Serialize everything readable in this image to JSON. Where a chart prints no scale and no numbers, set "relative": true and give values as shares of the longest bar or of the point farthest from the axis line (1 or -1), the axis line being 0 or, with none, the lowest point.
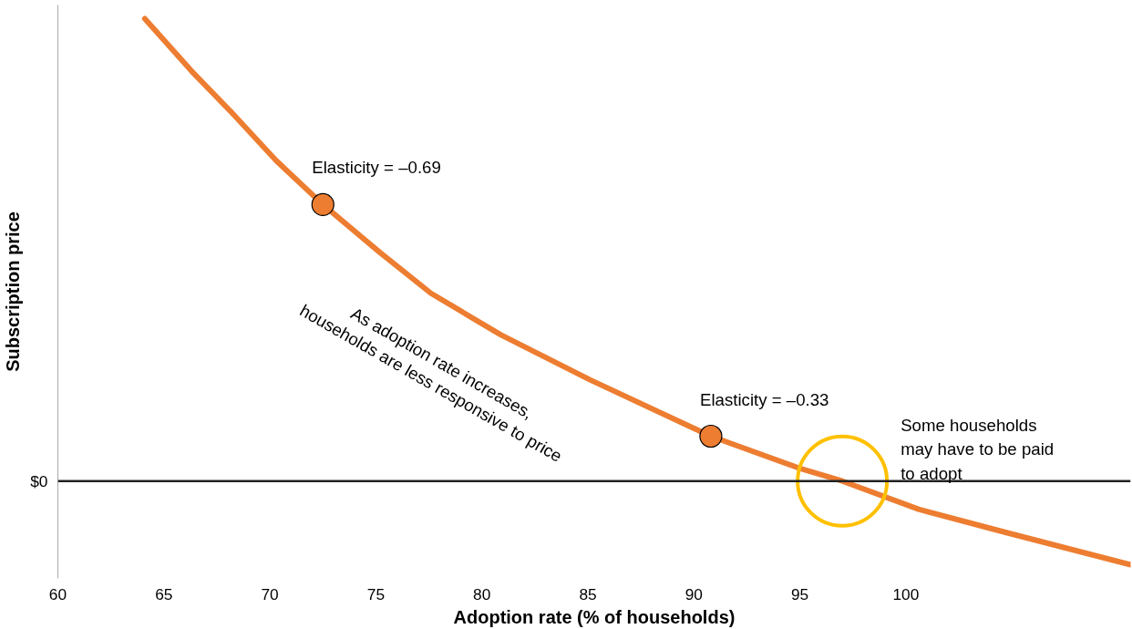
{
  "chart_data": {
    "type": "line",
    "relative": true,
    "xlabel": "Adoption rate (% of households)",
    "ylabel": "Subscription price",
    "xlim": [
      60,
      110.6
    ],
    "xticks": [
      60,
      65,
      70,
      75,
      80,
      85,
      90,
      95,
      100
    ],
    "grid": false,
    "series": [
      {
        "color": "#ed7d31",
        "x": [
          64.1,
          66.3,
          68.2,
          70.3,
          72.5,
          75.2,
          77.6,
          80.9,
          85.1,
          90.8,
          94.9,
          97.0,
          100.6,
          104.7,
          110.6
        ],
        "values": [
          1.0,
          0.887,
          0.797,
          0.693,
          0.598,
          0.494,
          0.406,
          0.316,
          0.219,
          0.097,
          0.029,
          0.0,
          -0.061,
          -0.111,
          -0.181
        ]
      },
      {
        "type": "scatter",
        "color": "#ed7d31",
        "marker": "circle",
        "x": [
          72.5,
          90.8
        ],
        "values": [
          0.598,
          0.097
        ]
      }
    ],
    "ref_lines": [
      {
        "axis": "y",
        "value": 0,
        "label": "$0",
        "color": "#222222"
      }
    ],
    "annotations": [
      {
        "text": "Elasticity = –0.69",
        "x": 72.5,
        "y": 0.598
      },
      {
        "text": "Elasticity = –0.33",
        "x": 90.8,
        "y": 0.097
      },
      {
        "text": "As adoption rate increases,\nhouseholds are less responsive to price",
        "x": 80.9,
        "y": 0.316
      },
      "Some households\nmay have to be paid\nto adopt"
    ]
  }
}
